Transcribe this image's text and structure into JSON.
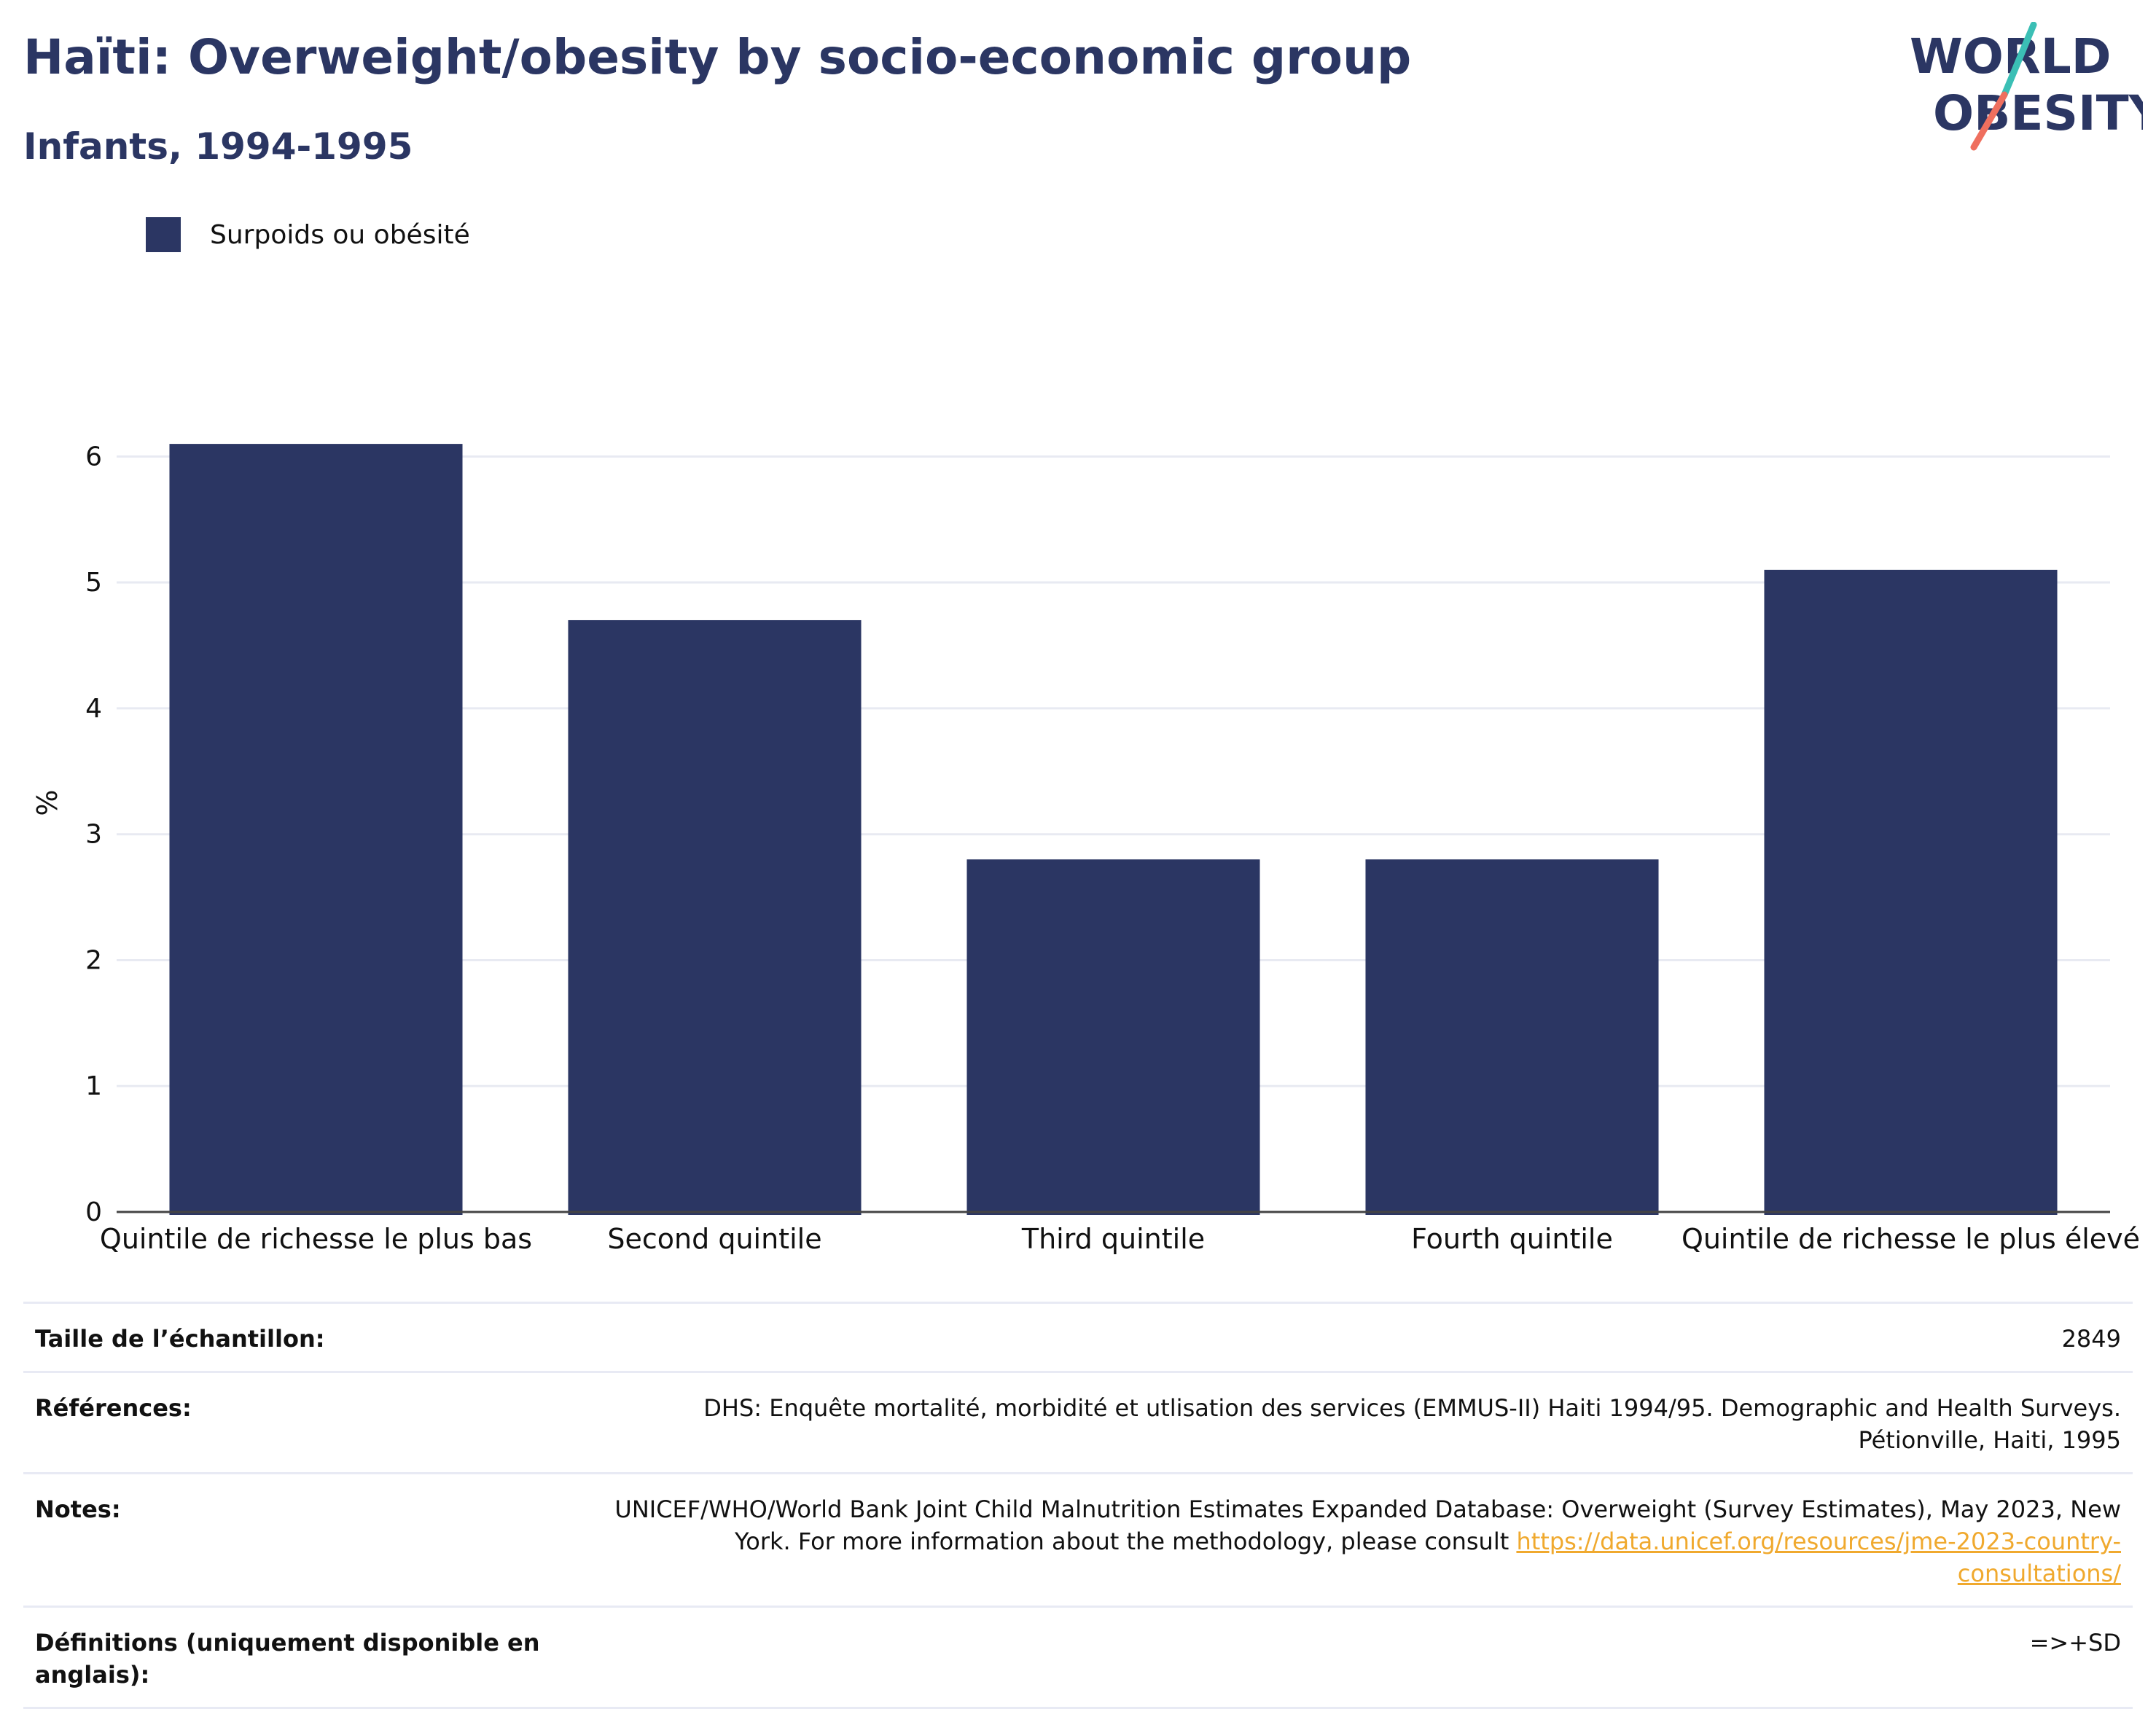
{
  "header": {
    "title": "Haïti: Overweight/obesity by socio-economic group",
    "subtitle": "Infants, 1994-1995",
    "logo_text_line1": "WORLD",
    "logo_text_line2": "OBESITY"
  },
  "colors": {
    "bar": "#2b3663",
    "title": "#2b3663",
    "grid": "#e8eaf2",
    "link": "#f0a92e",
    "logo_teal": "#3bbfb5",
    "logo_coral": "#ef6f5e"
  },
  "chart_data": {
    "type": "bar",
    "categories": [
      "Quintile de richesse le plus bas",
      "Second quintile",
      "Third quintile",
      "Fourth quintile",
      "Quintile de richesse le plus élevé"
    ],
    "series": [
      {
        "name": "Surpoids ou obésité",
        "values": [
          6.1,
          4.7,
          2.8,
          2.8,
          5.1
        ]
      }
    ],
    "ylabel": "%",
    "ylim": [
      0,
      6.5
    ],
    "yticks": [
      "0",
      "1",
      "2",
      "3",
      "4",
      "5",
      "6"
    ],
    "grid": true,
    "legend": "top-left"
  },
  "info": {
    "sample_label": "Taille de l’échantillon:",
    "sample_value": "2849",
    "references_label": "Références:",
    "references_value": "DHS: Enquête mortalité, morbidité et utlisation des services (EMMUS-II) Haiti 1994/95. Demographic and Health Surveys. Pétionville, Haiti, 1995",
    "notes_label": "Notes:",
    "notes_value": "UNICEF/WHO/World Bank Joint Child Malnutrition Estimates Expanded Database: Overweight (Survey Estimates), May 2023, New York. For more information about the methodology, please consult ",
    "notes_link": "https://data.unicef.org/resources/jme-2023-country-consultations/",
    "definitions_label": "Définitions (uniquement disponible en anglais):",
    "definitions_value": "=>+SD"
  }
}
